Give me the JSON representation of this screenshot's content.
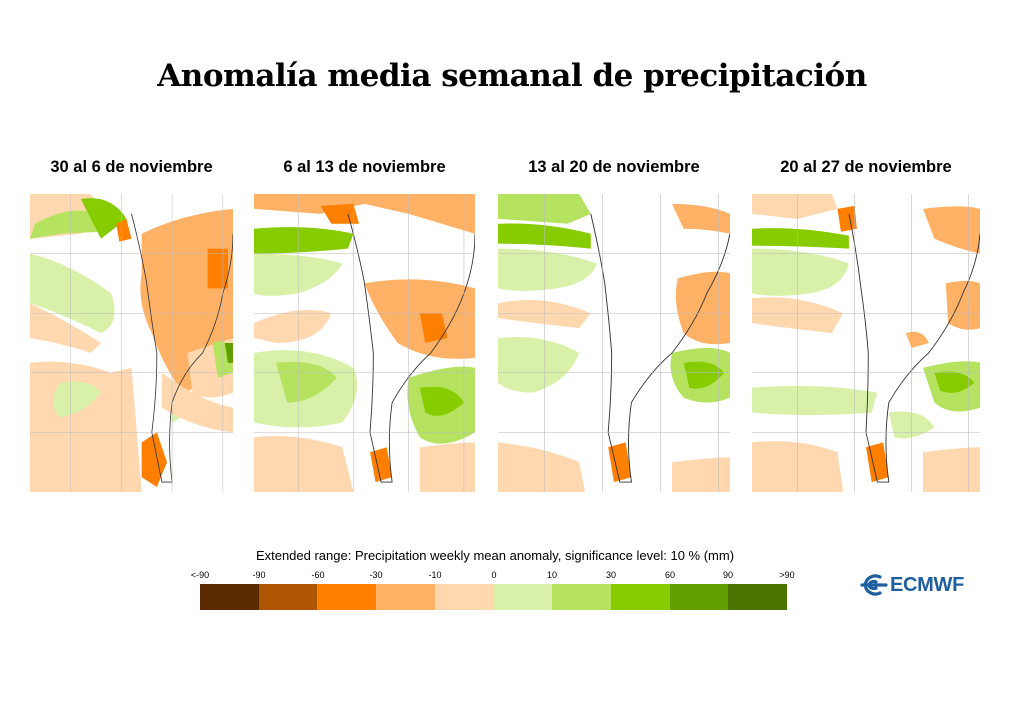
{
  "title": "Anomalía media semanal de precipitación",
  "panels": [
    {
      "label": "30 al 6 de noviembre"
    },
    {
      "label": "6 al 13 de noviembre"
    },
    {
      "label": "13 al 20 de noviembre"
    },
    {
      "label": "20 al 27 de noviembre"
    }
  ],
  "legend": {
    "title": "Extended range: Precipitation weekly mean anomaly, significance level: 10 % (mm)",
    "ticks": [
      "<-90",
      "-90",
      "-60",
      "-30",
      "-10",
      "0",
      "10",
      "30",
      "60",
      "90",
      ">90"
    ],
    "colors": [
      "#5c2a00",
      "#ad5500",
      "#ff7f00",
      "#ffb266",
      "#ffd8b0",
      "#d9f0a8",
      "#b5e35f",
      "#86cc00",
      "#619e00",
      "#4a7300"
    ]
  },
  "logo": {
    "text": "ECMWF",
    "icon": "ecmwf-logo-icon",
    "color": "#1f5fa0"
  },
  "colors": {
    "dry_strong": "#ff7f00",
    "dry_moderate": "#ffb266",
    "dry_weak": "#ffd8b0",
    "wet_weak": "#d9f0a8",
    "wet_moderate": "#b5e35f",
    "wet_strong": "#86cc00",
    "wet_very_strong": "#619e00"
  }
}
